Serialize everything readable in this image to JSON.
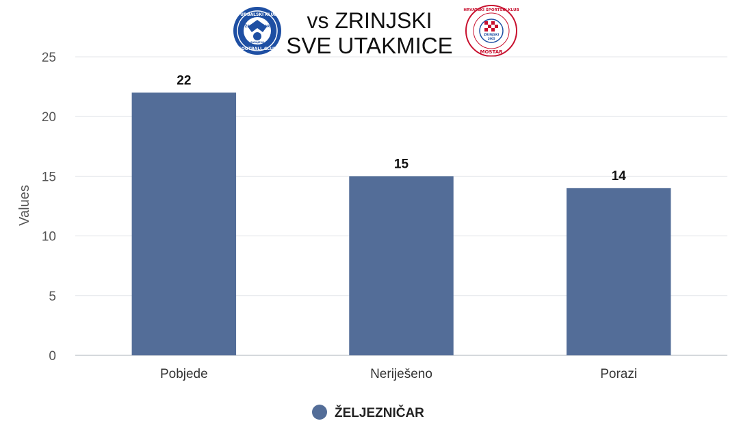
{
  "header": {
    "title_line1": "vs ZRINJSKI",
    "title_line2": "SVE UTAKMICE",
    "logo_left": {
      "icon": "zeljeznicar-crest-icon",
      "text_top": "FUDBALSKI KLUB",
      "text_mid": "ŽELJEZNIČAR",
      "text_bottom": "FOOTBALL CLUB",
      "text_small": "SARAJEVO",
      "color": "#1e4fa3"
    },
    "logo_right": {
      "icon": "zrinjski-crest-icon",
      "text_top": "HRVATSKI ŠPORTSKI KLUB",
      "text_bottom": "MOSTAR",
      "text_mid": "ZRINJSKI",
      "text_year": "1905",
      "color": "#c8102e"
    }
  },
  "chart_data": {
    "type": "bar",
    "title": "vs ZRINJSKI SVE UTAKMICE",
    "categories": [
      "Pobjede",
      "Neriješeno",
      "Porazi"
    ],
    "series": [
      {
        "name": "ŽELJEZNIČAR",
        "values": [
          22,
          15,
          14
        ],
        "color": "#536d98"
      }
    ],
    "xlabel": "",
    "ylabel": "Values",
    "ylim": [
      0,
      25
    ],
    "yticks": [
      0,
      5,
      10,
      15,
      20,
      25
    ],
    "grid": true,
    "legend": "bottom-center",
    "data_labels": true
  }
}
